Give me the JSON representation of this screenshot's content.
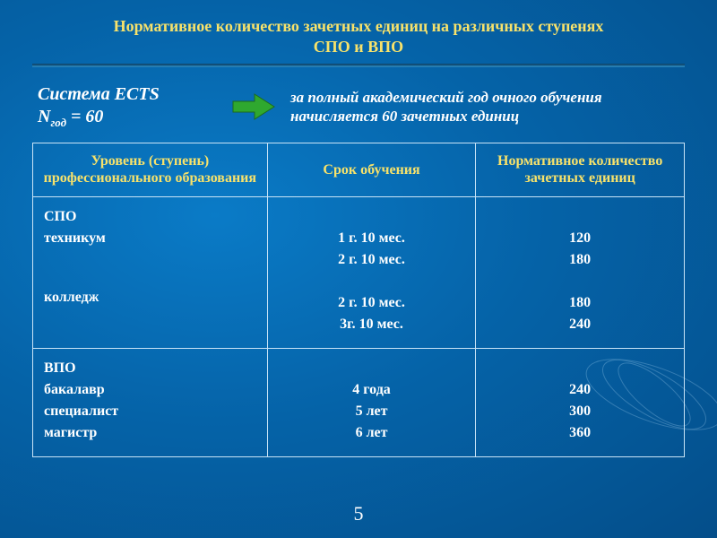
{
  "title_line1": "Нормативное количество зачетных единиц на различных ступенях",
  "title_line2": "СПО и ВПО",
  "intro_left_l1": "Система ECTS",
  "intro_left_l2_pre": "N",
  "intro_left_l2_sub": "год",
  "intro_left_l2_post": " = 60",
  "intro_right": "за полный академический год очного обучения начисляется 60 зачетных единиц",
  "headers": {
    "level": "Уровень (ступень) профессионального образования",
    "duration": "Срок обучения",
    "credits": "Нормативное количество зачетных единиц"
  },
  "rows": [
    {
      "level": [
        "СПО",
        "техникум",
        "",
        "",
        "колледж"
      ],
      "duration": [
        "",
        "1 г. 10 мес.",
        "2 г. 10 мес.",
        "",
        "2 г. 10 мес.",
        "3г. 10 мес."
      ],
      "credits": [
        "",
        "120",
        "180",
        "",
        "180",
        "240"
      ]
    },
    {
      "level": [
        "ВПО",
        "бакалавр",
        "специалист",
        "магистр"
      ],
      "duration": [
        "",
        "4 года",
        "5 лет",
        "6 лет"
      ],
      "credits": [
        "",
        "240",
        "300",
        "360"
      ]
    }
  ],
  "page_number": "5",
  "colors": {
    "accent": "#f7e26b",
    "border": "#c9e4f7",
    "arrow": "#2fa82f"
  }
}
